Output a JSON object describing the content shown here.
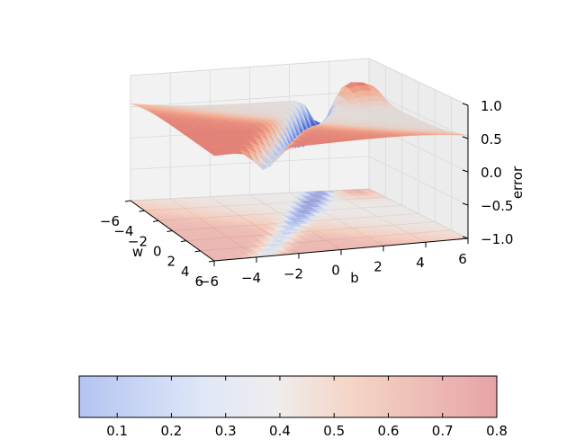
{
  "chart_data": {
    "type": "surface3d",
    "title": "",
    "projection": "3d",
    "axes": {
      "x": {
        "label": "w",
        "range": [
          -6,
          6
        ],
        "ticks": [
          "−6",
          "−4",
          "−2",
          "0",
          "2",
          "4",
          "6"
        ]
      },
      "y": {
        "label": "b",
        "range": [
          -6,
          6
        ],
        "ticks": [
          "−6",
          "−4",
          "−2",
          "0",
          "2",
          "4",
          "6"
        ]
      },
      "z": {
        "label": "error",
        "range": [
          -1,
          1
        ],
        "ticks": [
          "−1.0",
          "−0.5",
          "0.0",
          "0.5",
          "1.0"
        ]
      }
    },
    "grid": true,
    "surface": {
      "description_values": {
        "plateau_level": 0.55,
        "min_value": 0.03,
        "max_value": 0.8
      }
    },
    "contour_projection": {
      "offset_z": -1.0
    },
    "colormap": "coolwarm",
    "alpha": 0.5,
    "colorbar": {
      "orientation": "horizontal",
      "range": [
        0.03,
        0.8
      ],
      "ticks": [
        "0.1",
        "0.2",
        "0.3",
        "0.4",
        "0.5",
        "0.6",
        "0.7",
        "0.8"
      ]
    }
  }
}
